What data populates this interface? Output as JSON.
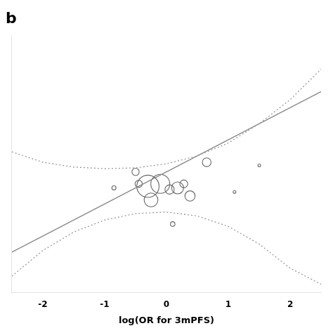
{
  "chart_data": {
    "type": "bubble",
    "title": "b",
    "x_label": "log(OR for 3mPFS)",
    "xlim": [
      -2.5,
      2.5
    ],
    "ylim": [
      -1.2,
      2.0
    ],
    "xticks": [
      -2,
      -1,
      0,
      1,
      2
    ],
    "tick_labels": "x",
    "grid": false,
    "series": [
      {
        "type": "line",
        "line_style": "dotted",
        "color": "#999999",
        "x": [
          -2.5,
          -2.0,
          -1.5,
          -1.0,
          -0.5,
          0.0,
          0.5,
          1.0,
          1.5,
          2.0,
          2.5
        ],
        "values": [
          0.55,
          0.42,
          0.36,
          0.34,
          0.35,
          0.4,
          0.5,
          0.66,
          0.9,
          1.2,
          1.58
        ]
      },
      {
        "type": "line",
        "line_style": "dotted",
        "color": "#999999",
        "x": [
          -2.5,
          -2.0,
          -1.5,
          -1.0,
          -0.5,
          0.0,
          0.5,
          1.0,
          1.5,
          2.0,
          2.5
        ],
        "values": [
          -1.0,
          -0.68,
          -0.45,
          -0.3,
          -0.22,
          -0.2,
          -0.25,
          -0.38,
          -0.6,
          -0.9,
          -1.1
        ]
      },
      {
        "type": "line",
        "line_style": "solid",
        "color": "#888888",
        "x": [
          -2.5,
          2.5
        ],
        "values": [
          -0.7,
          1.3
        ]
      },
      {
        "type": "bubble",
        "marker": "open_circle",
        "color": "#666666",
        "x": [
          -0.85,
          -0.5,
          -0.45,
          -0.3,
          -0.1,
          -0.25,
          0.05,
          0.18,
          0.28,
          0.38,
          0.1,
          0.65,
          1.1,
          1.5
        ],
        "values": [
          0.1,
          0.3,
          0.15,
          0.12,
          0.15,
          -0.05,
          0.08,
          0.1,
          0.15,
          0.0,
          -0.35,
          0.42,
          0.05,
          0.38
        ],
        "sizes": [
          18,
          55,
          55,
          520,
          380,
          200,
          90,
          150,
          65,
          110,
          22,
          80,
          8,
          8
        ]
      }
    ]
  }
}
